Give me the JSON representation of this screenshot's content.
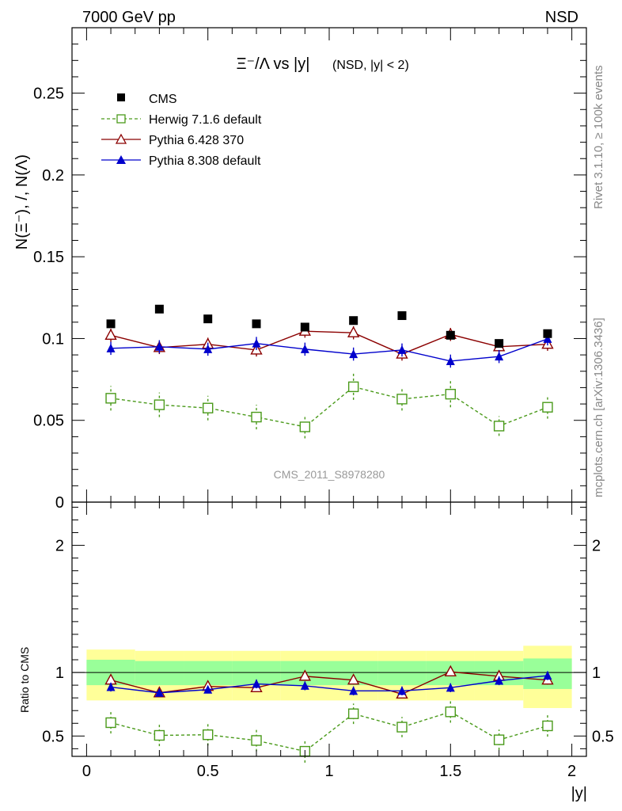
{
  "header": {
    "left": "7000 GeV pp",
    "right": "NSD"
  },
  "side_labels": {
    "rivet": "Rivet 3.1.10, ≥ 100k events",
    "mcplots": "mcplots.cern.ch [arXiv:1306.3436]"
  },
  "watermark": "CMS_2011_S8978280",
  "colors": {
    "cms": "#000000",
    "herwig": "#4a9a1a",
    "pythia6": "#8b0000",
    "pythia8": "#0000cc",
    "band_outer": "#ffff99",
    "band_inner": "#99ff99"
  },
  "chart_data": [
    {
      "type": "scatter",
      "title": "Ξ⁻/Λ vs |y|",
      "title_suffix": "(NSD, |y| < 2)",
      "ylabel": "N(Ξ⁻), /, N(Λ)",
      "xlabel": "|y|",
      "xlim": [
        -0.06,
        2.06
      ],
      "ylim": [
        0,
        0.29
      ],
      "yticks": [
        "0",
        "0.05",
        "0.1",
        "0.15",
        "0.2",
        "0.25"
      ],
      "legend_position": "top-left",
      "x": [
        0.1,
        0.3,
        0.5,
        0.7,
        0.9,
        1.1,
        1.3,
        1.5,
        1.7,
        1.9
      ],
      "series": [
        {
          "name": "CMS",
          "values": [
            0.109,
            0.118,
            0.112,
            0.109,
            0.107,
            0.111,
            0.114,
            0.102,
            0.097,
            0.103
          ]
        },
        {
          "name": "Herwig 7.1.6 default",
          "values": [
            0.0635,
            0.0595,
            0.0575,
            0.052,
            0.046,
            0.0705,
            0.063,
            0.066,
            0.0465,
            0.058
          ],
          "errors": [
            0.0075,
            0.0075,
            0.0075,
            0.0075,
            0.007,
            0.008,
            0.007,
            0.008,
            0.006,
            0.007
          ]
        },
        {
          "name": "Pythia 6.428 370",
          "values": [
            0.102,
            0.0945,
            0.0965,
            0.093,
            0.1045,
            0.1035,
            0.0905,
            0.1025,
            0.095,
            0.0965
          ],
          "errors": [
            0.004,
            0.004,
            0.004,
            0.004,
            0.004,
            0.004,
            0.004,
            0.004,
            0.004,
            0.004
          ]
        },
        {
          "name": "Pythia 8.308 default",
          "values": [
            0.094,
            0.095,
            0.0935,
            0.097,
            0.0935,
            0.0905,
            0.093,
            0.0862,
            0.089,
            0.0998
          ],
          "errors": [
            0.004,
            0.004,
            0.004,
            0.004,
            0.004,
            0.004,
            0.004,
            0.004,
            0.004,
            0.004
          ]
        }
      ]
    },
    {
      "type": "scatter",
      "ylabel": "Ratio to CMS",
      "xlabel": "|y|",
      "xlim": [
        -0.06,
        2.06
      ],
      "ylim": [
        0.34,
        2.34
      ],
      "yticks": [
        "0.5",
        "1",
        "2"
      ],
      "xticks": [
        "0",
        "0.5",
        "1",
        "1.5",
        "2"
      ],
      "band": {
        "x_edges": [
          0.0,
          0.2,
          0.4,
          0.6,
          0.8,
          1.0,
          1.2,
          1.4,
          1.6,
          1.8,
          2.0
        ],
        "inner": [
          [
            0.9,
            1.1
          ],
          [
            0.9,
            1.09
          ],
          [
            0.9,
            1.09
          ],
          [
            0.9,
            1.09
          ],
          [
            0.9,
            1.09
          ],
          [
            0.9,
            1.09
          ],
          [
            0.9,
            1.09
          ],
          [
            0.9,
            1.09
          ],
          [
            0.9,
            1.09
          ],
          [
            0.87,
            1.11
          ]
        ],
        "outer": [
          [
            0.78,
            1.18
          ],
          [
            0.78,
            1.17
          ],
          [
            0.78,
            1.17
          ],
          [
            0.78,
            1.17
          ],
          [
            0.78,
            1.17
          ],
          [
            0.78,
            1.17
          ],
          [
            0.78,
            1.17
          ],
          [
            0.78,
            1.17
          ],
          [
            0.78,
            1.17
          ],
          [
            0.72,
            1.21
          ]
        ]
      },
      "series": [
        {
          "name": "Herwig 7.1.6 default",
          "values": [
            0.605,
            0.505,
            0.51,
            0.465,
            0.38,
            0.675,
            0.57,
            0.69,
            0.47,
            0.58
          ],
          "errors": [
            0.085,
            0.085,
            0.085,
            0.085,
            0.09,
            0.08,
            0.08,
            0.085,
            0.08,
            0.085
          ]
        },
        {
          "name": "Pythia 6.428 370",
          "values": [
            0.94,
            0.84,
            0.89,
            0.88,
            0.97,
            0.94,
            0.83,
            1.005,
            0.97,
            0.94
          ],
          "errors": [
            0.035,
            0.03,
            0.03,
            0.03,
            0.035,
            0.035,
            0.03,
            0.035,
            0.035,
            0.035
          ]
        },
        {
          "name": "Pythia 8.308 default",
          "values": [
            0.885,
            0.84,
            0.865,
            0.91,
            0.895,
            0.855,
            0.855,
            0.88,
            0.935,
            0.975
          ],
          "errors": [
            0.035,
            0.03,
            0.03,
            0.035,
            0.035,
            0.035,
            0.035,
            0.035,
            0.035,
            0.035
          ]
        }
      ]
    }
  ]
}
